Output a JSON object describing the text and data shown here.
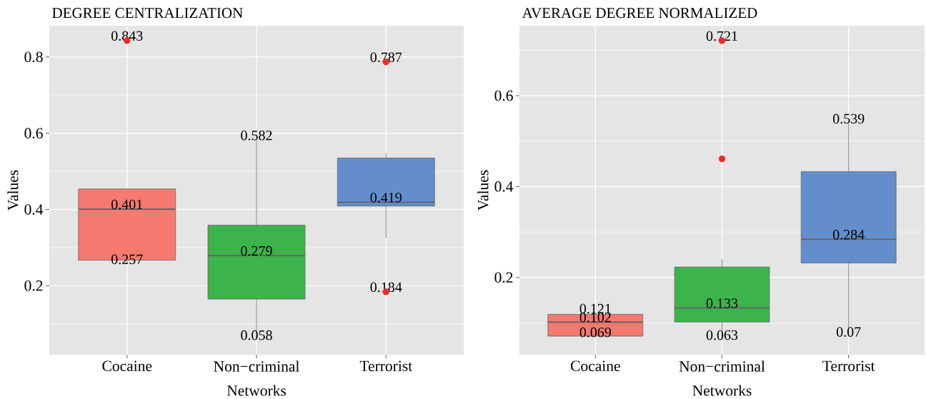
{
  "chart_data": [
    {
      "type": "box",
      "title": "DEGREE CENTRALIZATION",
      "xlabel": "Networks",
      "ylabel": "Values",
      "categories": [
        "Cocaine",
        "Non−criminal",
        "Terrorist"
      ],
      "boxes": [
        {
          "low": 0.257,
          "q1": 0.267,
          "median": 0.401,
          "q3": 0.454,
          "high": 0.454
        },
        {
          "low": 0.058,
          "q1": 0.165,
          "median": 0.279,
          "q3": 0.359,
          "high": 0.582
        },
        {
          "low": 0.325,
          "q1": 0.409,
          "median": 0.419,
          "q3": 0.535,
          "high": 0.548
        }
      ],
      "colors": [
        "#f4796f",
        "#3cb44b",
        "#638ecb"
      ],
      "series": [
        {
          "type": "scatter",
          "x": [
            "Cocaine",
            "Terrorist",
            "Terrorist"
          ],
          "values": [
            0.843,
            0.787,
            0.184
          ],
          "color": "#ee2c2c"
        }
      ],
      "ylim": [
        0.019,
        0.882
      ],
      "yticks": [
        0.2,
        0.4,
        0.6,
        0.8
      ],
      "grid": true,
      "marker": "circle",
      "annotations": [
        {
          "text": "0.843",
          "x": "Cocaine",
          "y": 0.843
        },
        {
          "text": "0.401",
          "x": "Cocaine",
          "y": 0.401
        },
        {
          "text": "0.257",
          "x": "Cocaine",
          "y": 0.257
        },
        {
          "text": "0.582",
          "x": "Non−criminal",
          "y": 0.582
        },
        {
          "text": "0.279",
          "x": "Non−criminal",
          "y": 0.279
        },
        {
          "text": "0.058",
          "x": "Non−criminal",
          "y": 0.058
        },
        {
          "text": "0.787",
          "x": "Terrorist",
          "y": 0.787
        },
        {
          "text": "0.419",
          "x": "Terrorist",
          "y": 0.419
        },
        {
          "text": "0.184",
          "x": "Terrorist",
          "y": 0.184
        }
      ]
    },
    {
      "type": "box",
      "title": "AVERAGE DEGREE NORMALIZED",
      "xlabel": "Networks",
      "ylabel": "Values",
      "categories": [
        "Cocaine",
        "Non−criminal",
        "Terrorist"
      ],
      "boxes": [
        {
          "low": 0.069,
          "q1": 0.071,
          "median": 0.102,
          "q3": 0.119,
          "high": 0.121
        },
        {
          "low": 0.063,
          "q1": 0.102,
          "median": 0.133,
          "q3": 0.223,
          "high": 0.24
        },
        {
          "low": 0.07,
          "q1": 0.232,
          "median": 0.284,
          "q3": 0.433,
          "high": 0.539
        }
      ],
      "colors": [
        "#f4796f",
        "#3cb44b",
        "#638ecb"
      ],
      "series": [
        {
          "type": "scatter",
          "x": [
            "Non−criminal",
            "Non−criminal"
          ],
          "values": [
            0.461,
            0.721
          ],
          "color": "#ee2c2c"
        }
      ],
      "ylim": [
        0.03,
        0.754
      ],
      "yticks": [
        0.2,
        0.4,
        0.6
      ],
      "grid": true,
      "marker": "circle",
      "annotations": [
        {
          "text": "0.121",
          "x": "Cocaine",
          "y": 0.121
        },
        {
          "text": "0.102",
          "x": "Cocaine",
          "y": 0.102
        },
        {
          "text": "0.069",
          "x": "Cocaine",
          "y": 0.069
        },
        {
          "text": "0.721",
          "x": "Non−criminal",
          "y": 0.721
        },
        {
          "text": "0.133",
          "x": "Non−criminal",
          "y": 0.133
        },
        {
          "text": "0.063",
          "x": "Non−criminal",
          "y": 0.063
        },
        {
          "text": "0.539",
          "x": "Terrorist",
          "y": 0.539
        },
        {
          "text": "0.284",
          "x": "Terrorist",
          "y": 0.284
        },
        {
          "text": "0.07",
          "x": "Terrorist",
          "y": 0.07
        }
      ]
    }
  ]
}
